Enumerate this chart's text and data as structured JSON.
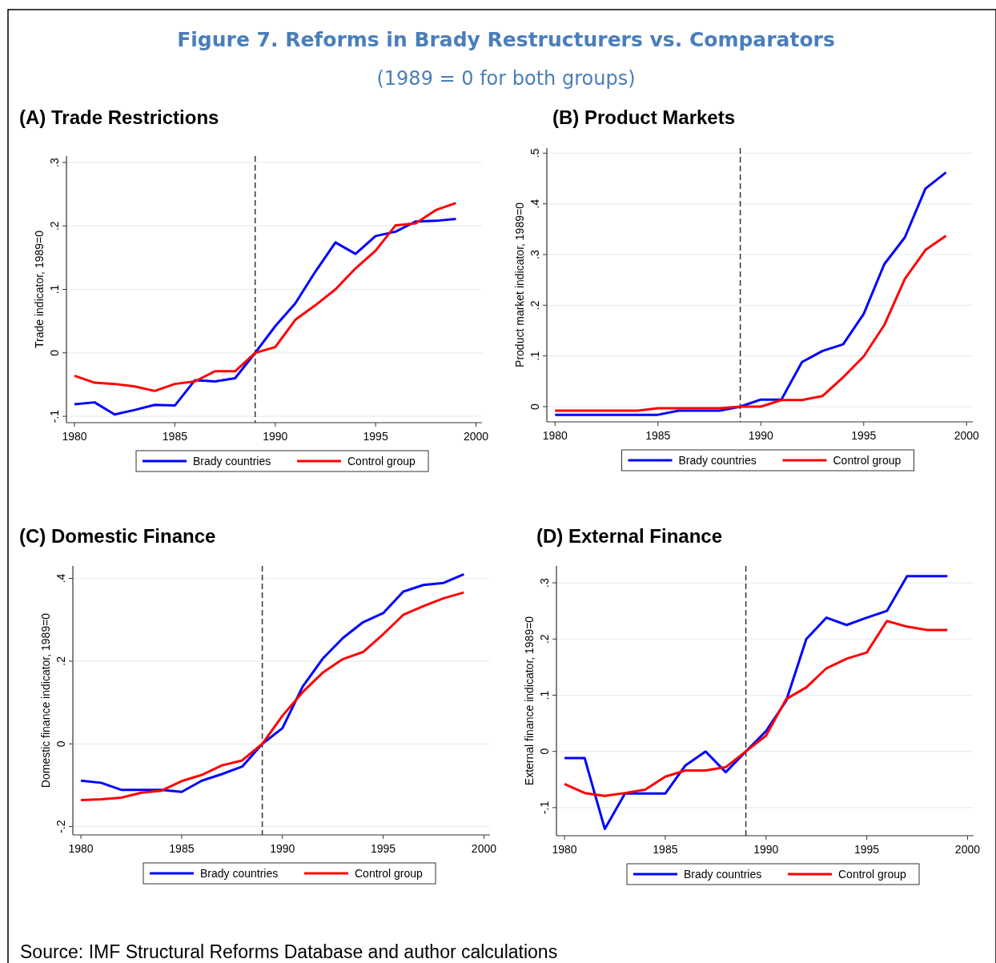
{
  "chart_data": [
    {
      "type": "other",
      "title": "Figure 7. Reforms in Brady Restructurers vs. Comparators",
      "subtitle": "(1989 = 0 for both groups)",
      "annotations": [
        "Source: IMF Structural Reforms Database and author calculations"
      ]
    },
    {
      "type": "line",
      "title": "(A) Trade Restrictions",
      "ylabel": "Trade indicator, 1989=0",
      "x": [
        1980,
        1981,
        1982,
        1983,
        1984,
        1985,
        1986,
        1987,
        1988,
        1989,
        1990,
        1991,
        1992,
        1993,
        1994,
        1995,
        1996,
        1997,
        1998,
        1999
      ],
      "xlim": [
        1979.6,
        2000.3
      ],
      "xticks": [
        1980,
        1985,
        1990,
        1995,
        2000
      ],
      "ylim": [
        -0.11,
        0.31
      ],
      "yticks": [
        {
          "value": -0.1,
          "label": "-.1"
        },
        {
          "value": 0,
          "label": "0"
        },
        {
          "value": 0.1,
          "label": ".1"
        },
        {
          "value": 0.2,
          "label": ".2"
        },
        {
          "value": 0.3,
          "label": ".3"
        }
      ],
      "grid": "y",
      "legend": "bottom",
      "ref_lines": [
        {
          "axis": "x",
          "value": 1989,
          "color": "#333333",
          "line_style": "dashed"
        }
      ],
      "series": [
        {
          "name": "Brady countries",
          "color": "#0000ff",
          "values": [
            -0.081,
            -0.078,
            -0.097,
            -0.09,
            -0.082,
            -0.083,
            -0.043,
            -0.045,
            -0.04,
            0,
            0.042,
            0.078,
            0.128,
            0.174,
            0.156,
            0.184,
            0.191,
            0.207,
            0.208,
            0.211
          ]
        },
        {
          "name": "Control group",
          "color": "#ff0000",
          "values": [
            -0.036,
            -0.047,
            -0.049,
            -0.053,
            -0.06,
            -0.049,
            -0.045,
            -0.029,
            -0.029,
            0,
            0.009,
            0.052,
            0.075,
            0.1,
            0.133,
            0.161,
            0.201,
            0.204,
            0.225,
            0.236
          ]
        }
      ]
    },
    {
      "type": "line",
      "title": "(B) Product Markets",
      "ylabel": "Product market indicator, 1989=0",
      "x": [
        1980,
        1981,
        1982,
        1983,
        1984,
        1985,
        1986,
        1987,
        1988,
        1989,
        1990,
        1991,
        1992,
        1993,
        1994,
        1995,
        1996,
        1997,
        1998,
        1999
      ],
      "xlim": [
        1979.6,
        2000.3
      ],
      "xticks": [
        1980,
        1985,
        1990,
        1995,
        2000
      ],
      "ylim": [
        -0.03,
        0.51
      ],
      "yticks": [
        {
          "value": 0,
          "label": "0"
        },
        {
          "value": 0.1,
          "label": ".1"
        },
        {
          "value": 0.2,
          "label": ".2"
        },
        {
          "value": 0.3,
          "label": ".3"
        },
        {
          "value": 0.4,
          "label": ".4"
        },
        {
          "value": 0.5,
          "label": ".5"
        }
      ],
      "grid": "y",
      "legend": "bottom",
      "ref_lines": [
        {
          "axis": "x",
          "value": 1989,
          "color": "#333333",
          "line_style": "dashed"
        }
      ],
      "series": [
        {
          "name": "Brady countries",
          "color": "#0000ff",
          "values": [
            -0.016,
            -0.016,
            -0.016,
            -0.016,
            -0.016,
            -0.016,
            -0.008,
            -0.008,
            -0.008,
            0,
            0.014,
            0.014,
            0.088,
            0.11,
            0.123,
            0.183,
            0.281,
            0.334,
            0.43,
            0.462
          ]
        },
        {
          "name": "Control group",
          "color": "#ff0000",
          "values": [
            -0.008,
            -0.008,
            -0.008,
            -0.008,
            -0.008,
            -0.003,
            -0.003,
            -0.003,
            -0.003,
            0,
            0,
            0.013,
            0.013,
            0.021,
            0.058,
            0.099,
            0.161,
            0.252,
            0.309,
            0.337
          ]
        }
      ]
    },
    {
      "type": "line",
      "title": "(C) Domestic Finance",
      "ylabel": "Domestic finance indicator, 1989=0",
      "x": [
        1980,
        1981,
        1982,
        1983,
        1984,
        1985,
        1986,
        1987,
        1988,
        1989,
        1990,
        1991,
        1992,
        1993,
        1994,
        1995,
        1996,
        1997,
        1998,
        1999
      ],
      "xlim": [
        1979.6,
        2000.3
      ],
      "xticks": [
        1980,
        1985,
        1990,
        1995,
        2000
      ],
      "ylim": [
        -0.22,
        0.43
      ],
      "yticks": [
        {
          "value": -0.2,
          "label": "-.2"
        },
        {
          "value": 0,
          "label": "0"
        },
        {
          "value": 0.2,
          "label": ".2"
        },
        {
          "value": 0.4,
          "label": ".4"
        }
      ],
      "grid": "y",
      "legend": "bottom",
      "ref_lines": [
        {
          "axis": "x",
          "value": 1989,
          "color": "#333333",
          "line_style": "dashed"
        }
      ],
      "series": [
        {
          "name": "Brady countries",
          "color": "#0000ff",
          "values": [
            -0.089,
            -0.094,
            -0.111,
            -0.111,
            -0.111,
            -0.116,
            -0.089,
            -0.073,
            -0.055,
            0,
            0.038,
            0.138,
            0.206,
            0.256,
            0.294,
            0.316,
            0.368,
            0.384,
            0.389,
            0.41
          ]
        },
        {
          "name": "Control group",
          "color": "#ff0000",
          "values": [
            -0.136,
            -0.134,
            -0.13,
            -0.118,
            -0.113,
            -0.09,
            -0.075,
            -0.052,
            -0.04,
            0,
            0.068,
            0.125,
            0.172,
            0.205,
            0.222,
            0.265,
            0.312,
            0.333,
            0.352,
            0.366
          ]
        }
      ]
    },
    {
      "type": "line",
      "title": "(D) External Finance",
      "ylabel": "External finance indicator, 1989=0",
      "x": [
        1980,
        1981,
        1982,
        1983,
        1984,
        1985,
        1986,
        1987,
        1988,
        1989,
        1990,
        1991,
        1992,
        1993,
        1994,
        1995,
        1996,
        1997,
        1998,
        1999
      ],
      "xlim": [
        1979.6,
        2000.3
      ],
      "xticks": [
        1980,
        1985,
        1990,
        1995,
        2000
      ],
      "ylim": [
        -0.15,
        0.33
      ],
      "yticks": [
        {
          "value": -0.1,
          "label": "-.1"
        },
        {
          "value": 0,
          "label": "0"
        },
        {
          "value": 0.1,
          "label": ".1"
        },
        {
          "value": 0.2,
          "label": ".2"
        },
        {
          "value": 0.3,
          "label": ".3"
        }
      ],
      "grid": "y",
      "legend": "bottom",
      "ref_lines": [
        {
          "axis": "x",
          "value": 1989,
          "color": "#333333",
          "line_style": "dashed"
        }
      ],
      "series": [
        {
          "name": "Brady countries",
          "color": "#0000ff",
          "values": [
            -0.012,
            -0.012,
            -0.138,
            -0.075,
            -0.075,
            -0.075,
            -0.025,
            0,
            -0.037,
            0,
            0.036,
            0.09,
            0.2,
            0.238,
            0.225,
            0.238,
            0.25,
            0.312,
            0.312,
            0.312
          ]
        },
        {
          "name": "Control group",
          "color": "#ff0000",
          "values": [
            -0.058,
            -0.074,
            -0.079,
            -0.074,
            -0.068,
            -0.045,
            -0.034,
            -0.034,
            -0.028,
            0,
            0.028,
            0.093,
            0.114,
            0.148,
            0.165,
            0.176,
            0.232,
            0.222,
            0.216,
            0.216
          ]
        }
      ]
    }
  ]
}
